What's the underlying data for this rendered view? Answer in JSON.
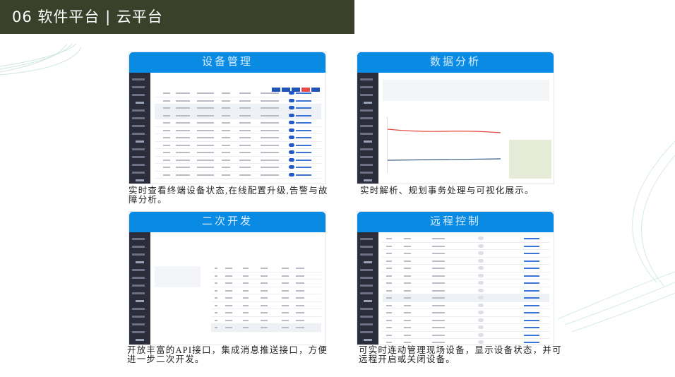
{
  "header": {
    "title": "06  软件平台 | 云平台",
    "background": "#3a412b"
  },
  "accent": "#0a8be3",
  "panels": [
    {
      "title": "设备管理",
      "caption": "实时查看终端设备状态,在线配置升级,告警与故障分析。"
    },
    {
      "title": "数据分析",
      "caption": "实时解析、规划事务处理与可视化展示。"
    },
    {
      "title": "二次开发",
      "caption": "开放丰富的API接口，集成消息推送接口，方便进一步二次开发。"
    },
    {
      "title": "远程控制",
      "caption": "可实时连动管理现场设备，显示设备状态，并可远程开启或关闭设备。"
    }
  ]
}
